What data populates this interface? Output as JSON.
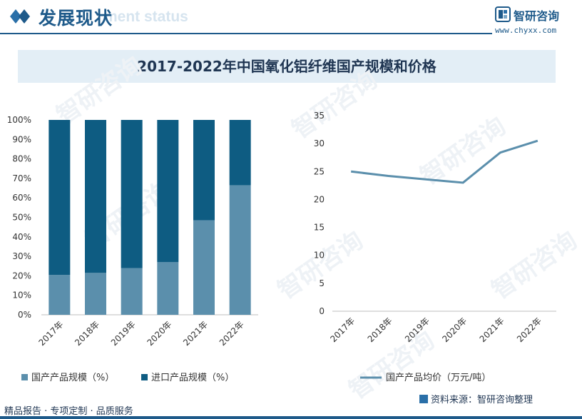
{
  "header": {
    "title": "发展现状",
    "subtitle": "ment status",
    "brand_name": "智研咨询",
    "brand_url": "www.chyxx.com"
  },
  "chart_title": "2017-2022年中国氧化铝纤维国产规模和价格",
  "watermark_text": "智研咨询",
  "chart_data": [
    {
      "type": "bar",
      "stacked": true,
      "categories": [
        "2017年",
        "2018年",
        "2019年",
        "2020年",
        "2021年",
        "2022年"
      ],
      "series": [
        {
          "name": "国产产品规模（%）",
          "color": "#5b8fac",
          "values": [
            20.5,
            21.5,
            24,
            27,
            48.5,
            66.5
          ]
        },
        {
          "name": "进口产品规模（%）",
          "color": "#0e5c82",
          "values": [
            79.5,
            78.5,
            76,
            73,
            51.5,
            33.5
          ]
        }
      ],
      "ylim": [
        0,
        100
      ],
      "yticks": [
        "0%",
        "10%",
        "20%",
        "30%",
        "40%",
        "50%",
        "60%",
        "70%",
        "80%",
        "90%",
        "100%"
      ],
      "legend": "bottom"
    },
    {
      "type": "line",
      "categories": [
        "2017年",
        "2018年",
        "2019年",
        "2020年",
        "2021年",
        "2022年"
      ],
      "series": [
        {
          "name": "国产产品均价（万元/吨）",
          "color": "#5b8fac",
          "values": [
            25,
            24.2,
            23.6,
            23,
            28.4,
            30.5
          ]
        }
      ],
      "ylim": [
        0,
        35
      ],
      "yticks": [
        "0",
        "5",
        "10",
        "15",
        "20",
        "25",
        "30",
        "35"
      ],
      "legend": "bottom"
    }
  ],
  "source": "资料来源：智研咨询整理",
  "footer": "精品报告 · 专项定制 · 品质服务"
}
